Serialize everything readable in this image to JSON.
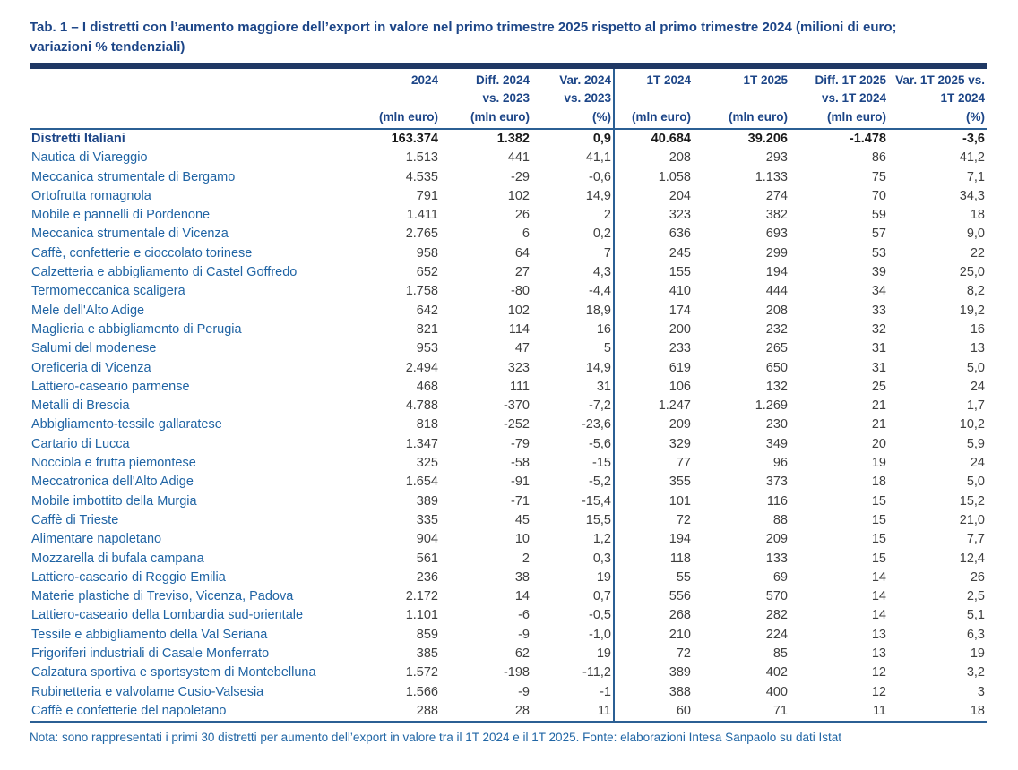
{
  "title": {
    "line1": "Tab. 1 – I distretti con l’aumento maggiore dell’export in valore nel primo trimestre 2025 rispetto al primo trimestre 2024 (milioni di euro;",
    "line2": "variazioni % tendenziali)"
  },
  "note": "Nota: sono rappresentati i primi 30 distretti per aumento dell’export in valore tra il 1T 2024 e il 1T 2025.  Fonte: elaborazioni Intesa Sanpaolo su dati Istat",
  "colors": {
    "band_navy": "#1F3864",
    "header_text_navy": "#1C4587",
    "rule_blue": "#2B5F94",
    "district_blue": "#2064A4",
    "number_gray": "#3F3F3F"
  },
  "chart_data": {
    "type": "table",
    "columns": [
      {
        "line1": "2024",
        "line2": "",
        "unit": "(mln euro)"
      },
      {
        "line1": "Diff. 2024",
        "line2": "vs. 2023",
        "unit": "(mln euro)"
      },
      {
        "line1": "Var. 2024",
        "line2": "vs. 2023",
        "unit": "(%)"
      },
      {
        "line1": "1T 2024",
        "line2": "",
        "unit": "(mln euro)"
      },
      {
        "line1": "1T 2025",
        "line2": "",
        "unit": "(mln euro)"
      },
      {
        "line1": "Diff. 1T 2025",
        "line2": "vs. 1T 2024",
        "unit": "(mln euro)"
      },
      {
        "line1": "Var. 1T 2025 vs.",
        "line2": "1T 2024",
        "unit": "(%)"
      }
    ],
    "rows": [
      {
        "name": "Distretti Italiani",
        "bold": true,
        "values": [
          "163.374",
          "1.382",
          "0,9",
          "40.684",
          "39.206",
          "-1.478",
          "-3,6"
        ]
      },
      {
        "name": "Nautica di Viareggio",
        "bold": false,
        "values": [
          "1.513",
          "441",
          "41,1",
          "208",
          "293",
          "86",
          "41,2"
        ]
      },
      {
        "name": "Meccanica strumentale di Bergamo",
        "bold": false,
        "values": [
          "4.535",
          "-29",
          "-0,6",
          "1.058",
          "1.133",
          "75",
          "7,1"
        ]
      },
      {
        "name": "Ortofrutta romagnola",
        "bold": false,
        "values": [
          "791",
          "102",
          "14,9",
          "204",
          "274",
          "70",
          "34,3"
        ]
      },
      {
        "name": "Mobile e pannelli di Pordenone",
        "bold": false,
        "values": [
          "1.411",
          "26",
          "2",
          "323",
          "382",
          "59",
          "18"
        ]
      },
      {
        "name": "Meccanica strumentale di Vicenza",
        "bold": false,
        "values": [
          "2.765",
          "6",
          "0,2",
          "636",
          "693",
          "57",
          "9,0"
        ]
      },
      {
        "name": "Caffè, confetterie e cioccolato torinese",
        "bold": false,
        "values": [
          "958",
          "64",
          "7",
          "245",
          "299",
          "53",
          "22"
        ]
      },
      {
        "name": "Calzetteria e abbigliamento di Castel Goffredo",
        "bold": false,
        "values": [
          "652",
          "27",
          "4,3",
          "155",
          "194",
          "39",
          "25,0"
        ]
      },
      {
        "name": "Termomeccanica scaligera",
        "bold": false,
        "values": [
          "1.758",
          "-80",
          "-4,4",
          "410",
          "444",
          "34",
          "8,2"
        ]
      },
      {
        "name": "Mele dell'Alto Adige",
        "bold": false,
        "values": [
          "642",
          "102",
          "18,9",
          "174",
          "208",
          "33",
          "19,2"
        ]
      },
      {
        "name": "Maglieria e abbigliamento di Perugia",
        "bold": false,
        "values": [
          "821",
          "114",
          "16",
          "200",
          "232",
          "32",
          "16"
        ]
      },
      {
        "name": "Salumi del modenese",
        "bold": false,
        "values": [
          "953",
          "47",
          "5",
          "233",
          "265",
          "31",
          "13"
        ]
      },
      {
        "name": "Oreficeria di Vicenza",
        "bold": false,
        "values": [
          "2.494",
          "323",
          "14,9",
          "619",
          "650",
          "31",
          "5,0"
        ]
      },
      {
        "name": "Lattiero-caseario parmense",
        "bold": false,
        "values": [
          "468",
          "111",
          "31",
          "106",
          "132",
          "25",
          "24"
        ]
      },
      {
        "name": "Metalli di Brescia",
        "bold": false,
        "values": [
          "4.788",
          "-370",
          "-7,2",
          "1.247",
          "1.269",
          "21",
          "1,7"
        ]
      },
      {
        "name": "Abbigliamento-tessile gallaratese",
        "bold": false,
        "values": [
          "818",
          "-252",
          "-23,6",
          "209",
          "230",
          "21",
          "10,2"
        ]
      },
      {
        "name": "Cartario di Lucca",
        "bold": false,
        "values": [
          "1.347",
          "-79",
          "-5,6",
          "329",
          "349",
          "20",
          "5,9"
        ]
      },
      {
        "name": "Nocciola e frutta piemontese",
        "bold": false,
        "values": [
          "325",
          "-58",
          "-15",
          "77",
          "96",
          "19",
          "24"
        ]
      },
      {
        "name": "Meccatronica dell'Alto Adige",
        "bold": false,
        "values": [
          "1.654",
          "-91",
          "-5,2",
          "355",
          "373",
          "18",
          "5,0"
        ]
      },
      {
        "name": "Mobile imbottito della Murgia",
        "bold": false,
        "values": [
          "389",
          "-71",
          "-15,4",
          "101",
          "116",
          "15",
          "15,2"
        ]
      },
      {
        "name": "Caffè di Trieste",
        "bold": false,
        "values": [
          "335",
          "45",
          "15,5",
          "72",
          "88",
          "15",
          "21,0"
        ]
      },
      {
        "name": "Alimentare napoletano",
        "bold": false,
        "values": [
          "904",
          "10",
          "1,2",
          "194",
          "209",
          "15",
          "7,7"
        ]
      },
      {
        "name": "Mozzarella di bufala campana",
        "bold": false,
        "values": [
          "561",
          "2",
          "0,3",
          "118",
          "133",
          "15",
          "12,4"
        ]
      },
      {
        "name": "Lattiero-caseario di Reggio Emilia",
        "bold": false,
        "values": [
          "236",
          "38",
          "19",
          "55",
          "69",
          "14",
          "26"
        ]
      },
      {
        "name": "Materie plastiche di Treviso, Vicenza, Padova",
        "bold": false,
        "values": [
          "2.172",
          "14",
          "0,7",
          "556",
          "570",
          "14",
          "2,5"
        ]
      },
      {
        "name": "Lattiero-caseario della Lombardia sud-orientale",
        "bold": false,
        "values": [
          "1.101",
          "-6",
          "-0,5",
          "268",
          "282",
          "14",
          "5,1"
        ]
      },
      {
        "name": "Tessile e abbigliamento della Val Seriana",
        "bold": false,
        "values": [
          "859",
          "-9",
          "-1,0",
          "210",
          "224",
          "13",
          "6,3"
        ]
      },
      {
        "name": "Frigoriferi industriali di Casale Monferrato",
        "bold": false,
        "values": [
          "385",
          "62",
          "19",
          "72",
          "85",
          "13",
          "19"
        ]
      },
      {
        "name": "Calzatura sportiva e sportsystem di Montebelluna",
        "bold": false,
        "values": [
          "1.572",
          "-198",
          "-11,2",
          "389",
          "402",
          "12",
          "3,2"
        ]
      },
      {
        "name": "Rubinetteria e valvolame Cusio-Valsesia",
        "bold": false,
        "values": [
          "1.566",
          "-9",
          "-1",
          "388",
          "400",
          "12",
          "3"
        ]
      },
      {
        "name": "Caffè e confetterie del napoletano",
        "bold": false,
        "values": [
          "288",
          "28",
          "11",
          "60",
          "71",
          "11",
          "18"
        ]
      }
    ]
  }
}
